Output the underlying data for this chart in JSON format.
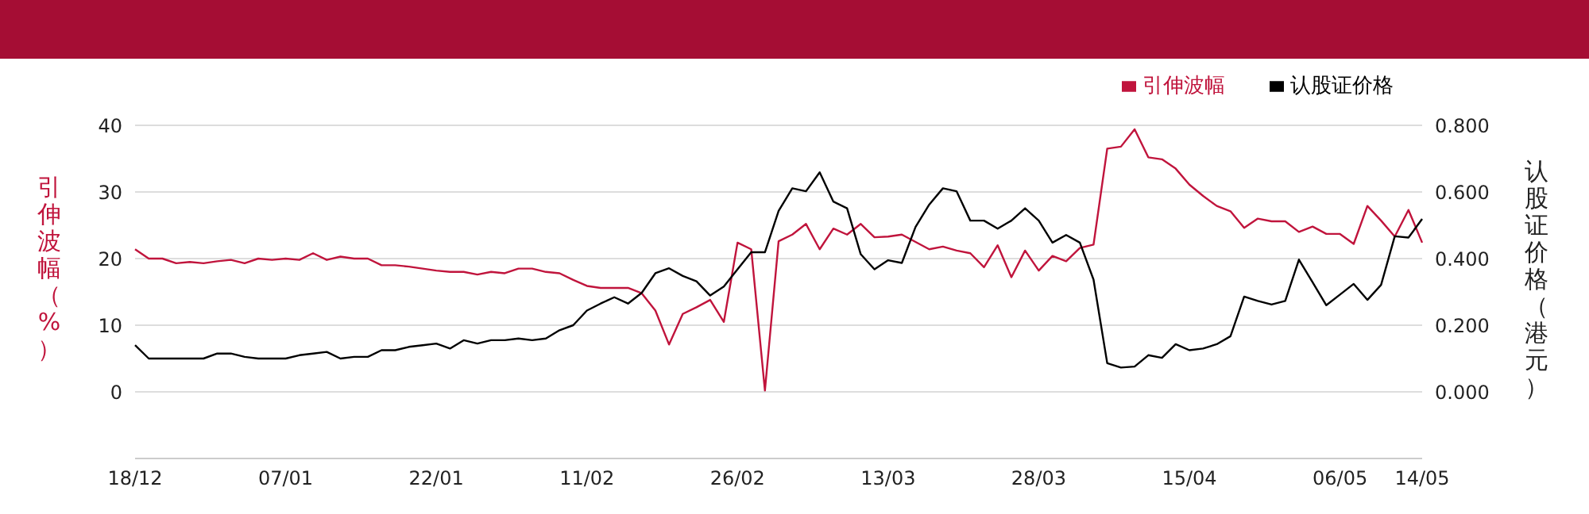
{
  "chart_data": {
    "type": "line",
    "ylabel": "引伸波幅（%）",
    "y2label": "认股证价格（港元）",
    "categories": [
      "18/12",
      null,
      null,
      null,
      null,
      null,
      null,
      null,
      null,
      null,
      null,
      "07/01",
      null,
      null,
      null,
      null,
      null,
      null,
      null,
      null,
      null,
      null,
      "22/01",
      null,
      null,
      null,
      null,
      null,
      null,
      null,
      null,
      null,
      null,
      "11/02",
      null,
      null,
      null,
      null,
      null,
      null,
      null,
      null,
      null,
      null,
      "26/02",
      null,
      null,
      null,
      null,
      null,
      null,
      null,
      null,
      null,
      null,
      "13/03",
      null,
      null,
      null,
      null,
      null,
      null,
      null,
      null,
      null,
      null,
      "28/03",
      null,
      null,
      null,
      null,
      null,
      null,
      null,
      null,
      null,
      null,
      "15/04",
      null,
      null,
      null,
      null,
      null,
      null,
      null,
      null,
      null,
      null,
      "06/05",
      null,
      null,
      null,
      null,
      null,
      "14/05"
    ],
    "series": [
      {
        "name": "引伸波幅",
        "color": "#c0143c",
        "values": [
          21.4,
          20,
          20,
          19.3,
          19.5,
          19.3,
          19.6,
          19.8,
          19.3,
          20,
          19.8,
          20,
          19.8,
          20.8,
          19.8,
          20.3,
          20,
          20,
          19,
          19,
          18.8,
          18.5,
          18.2,
          18,
          18,
          17.6,
          18,
          17.8,
          18.5,
          18.5,
          18,
          17.8,
          16.8,
          15.9,
          15.6,
          15.6,
          15.6,
          14.8,
          12.2,
          7.1,
          11.7,
          12.7,
          13.8,
          10.5,
          22.4,
          21.4,
          0.2,
          22.6,
          23.6,
          25.2,
          21.4,
          24.5,
          23.6,
          25.2,
          23.2,
          23.3,
          23.6,
          22.5,
          21.4,
          21.8,
          21.2,
          20.8,
          18.7,
          22,
          17.2,
          21.2,
          18.2,
          20.4,
          19.6,
          21.6,
          22.1,
          36.5,
          36.8,
          39.4,
          35.2,
          34.9,
          33.5,
          31.1,
          29.4,
          27.9,
          27.1,
          24.6,
          26,
          25.6,
          25.6,
          24,
          24.8,
          23.7,
          23.7,
          22.2,
          27.9,
          25.7,
          23.3,
          27.3,
          22.4
        ]
      },
      {
        "name": "认股证价格",
        "color": "#000000",
        "axis": "y2",
        "values": [
          0.14,
          0.1,
          0.1,
          0.1,
          0.1,
          0.1,
          0.115,
          0.115,
          0.105,
          0.1,
          0.1,
          0.1,
          0.11,
          0.115,
          0.12,
          0.1,
          0.105,
          0.105,
          0.125,
          0.125,
          0.135,
          0.14,
          0.145,
          0.13,
          0.155,
          0.145,
          0.155,
          0.155,
          0.16,
          0.155,
          0.16,
          0.185,
          0.2,
          0.244,
          0.265,
          0.284,
          0.265,
          0.297,
          0.356,
          0.371,
          0.348,
          0.332,
          0.289,
          0.316,
          0.368,
          0.419,
          0.419,
          0.543,
          0.611,
          0.602,
          0.659,
          0.571,
          0.551,
          0.413,
          0.368,
          0.395,
          0.387,
          0.495,
          0.562,
          0.611,
          0.602,
          0.514,
          0.514,
          0.49,
          0.514,
          0.551,
          0.514,
          0.448,
          0.471,
          0.448,
          0.337,
          0.086,
          0.073,
          0.076,
          0.11,
          0.102,
          0.143,
          0.125,
          0.13,
          0.143,
          0.167,
          0.286,
          0.273,
          0.262,
          0.273,
          0.397,
          0.329,
          0.26,
          0.292,
          0.324,
          0.276,
          0.321,
          0.467,
          0.463,
          0.519
        ]
      }
    ],
    "ylim": [
      -10,
      40
    ],
    "yticks": [
      0,
      10,
      20,
      30,
      40
    ],
    "y2lim": [
      -0.2,
      0.8
    ],
    "y2ticks": [
      {
        "value": 0,
        "label": "0.000"
      },
      {
        "value": 0.2,
        "label": "0.200"
      },
      {
        "value": 0.4,
        "label": "0.400"
      },
      {
        "value": 0.6,
        "label": "0.600"
      },
      {
        "value": 0.8,
        "label": "0.800"
      }
    ],
    "grid": "y",
    "legend": "top right",
    "marker": "none",
    "line_style": "solid"
  }
}
